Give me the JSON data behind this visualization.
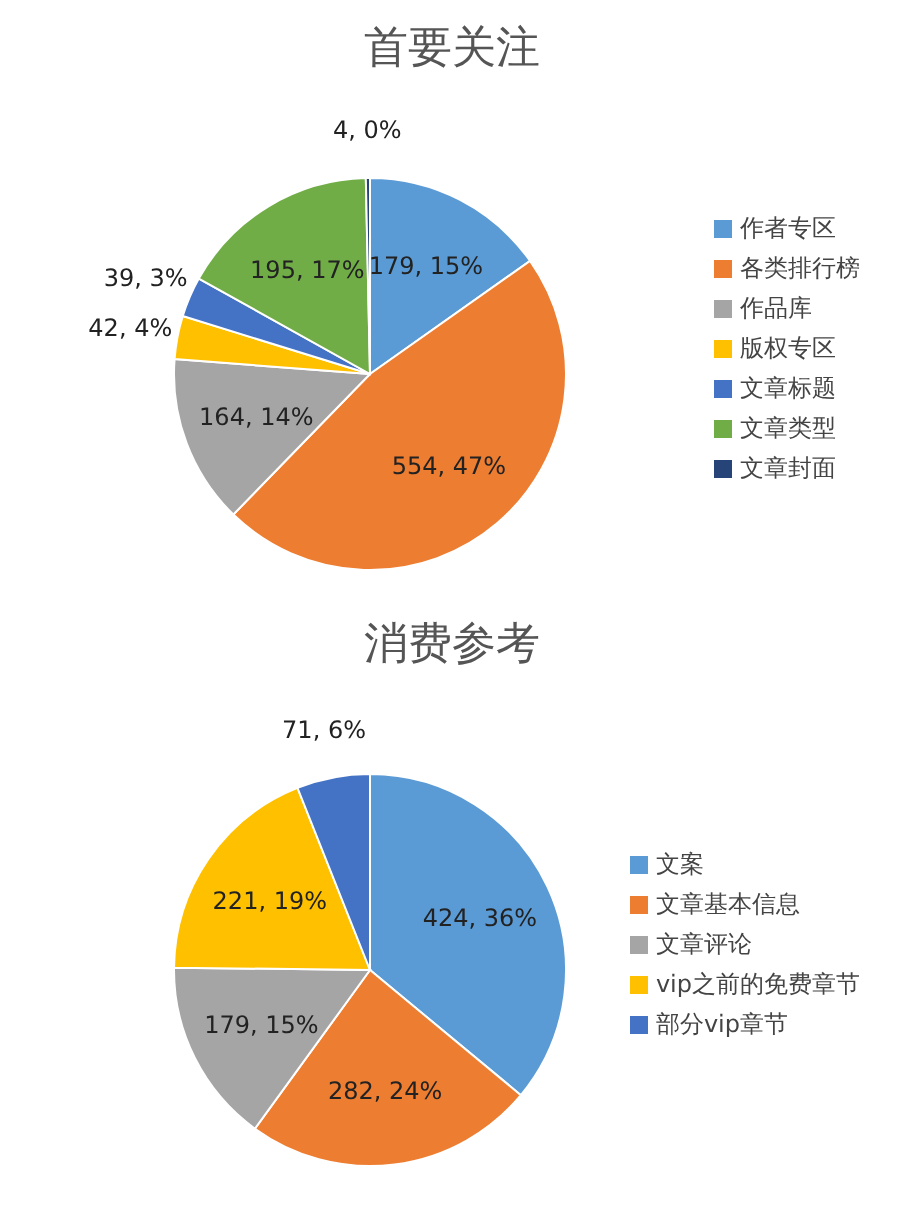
{
  "chart_data": [
    {
      "type": "pie",
      "title": "首要关注",
      "categories": [
        "作者专区",
        "各类排行榜",
        "作品库",
        "版权专区",
        "文章标题",
        "文章类型",
        "文章封面"
      ],
      "values": [
        179,
        554,
        164,
        42,
        39,
        195,
        4
      ],
      "colors": [
        "#5b9bd5",
        "#ed7d31",
        "#a5a5a5",
        "#ffc000",
        "#4472c4",
        "#70ad47",
        "#264478"
      ],
      "value_labels": [
        "179, 15%",
        "554, 47%",
        "164, 14%",
        "42, 4%",
        "39, 3%",
        "195, 17%",
        "4, 0%"
      ],
      "legend": "right"
    },
    {
      "type": "pie",
      "title": "消费参考",
      "categories": [
        "文案",
        "文章基本信息",
        "文章评论",
        "vip之前的免费章节",
        "部分vip章节"
      ],
      "values": [
        424,
        282,
        179,
        221,
        71
      ],
      "colors": [
        "#5b9bd5",
        "#ed7d31",
        "#a5a5a5",
        "#ffc000",
        "#4472c4"
      ],
      "value_labels": [
        "424, 36%",
        "282, 24%",
        "179, 15%",
        "221, 19%",
        "71, 6%"
      ],
      "legend": "right"
    }
  ]
}
